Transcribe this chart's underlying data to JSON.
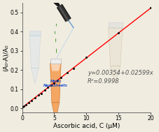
{
  "title": "",
  "xlabel": "Ascorbic acid, C (μM)",
  "ylabel": "(A₀-A)/A₀",
  "xlim": [
    0,
    20
  ],
  "ylim": [
    -0.02,
    0.55
  ],
  "xticks": [
    0,
    5,
    10,
    15,
    20
  ],
  "yticks": [
    0.0,
    0.1,
    0.2,
    0.3,
    0.4,
    0.5
  ],
  "slope": 0.02599,
  "intercept": 0.00354,
  "equation_text": "y=0.00354+0.02599x",
  "r2_text": "R²=0.9998",
  "data_x": [
    0.0,
    0.3,
    0.6,
    1.0,
    1.5,
    2.0,
    2.5,
    3.0,
    3.5,
    4.0,
    4.5,
    5.0,
    5.5,
    6.0,
    7.0,
    8.0,
    10.0,
    15.0,
    20.0
  ],
  "line_color": "#ff0000",
  "dot_color": "#111111",
  "background_color": "#f0ece0",
  "equation_color": "#555555",
  "axis_label_fontsize": 6.5,
  "tick_fontsize": 5.5,
  "equation_fontsize": 6.0
}
